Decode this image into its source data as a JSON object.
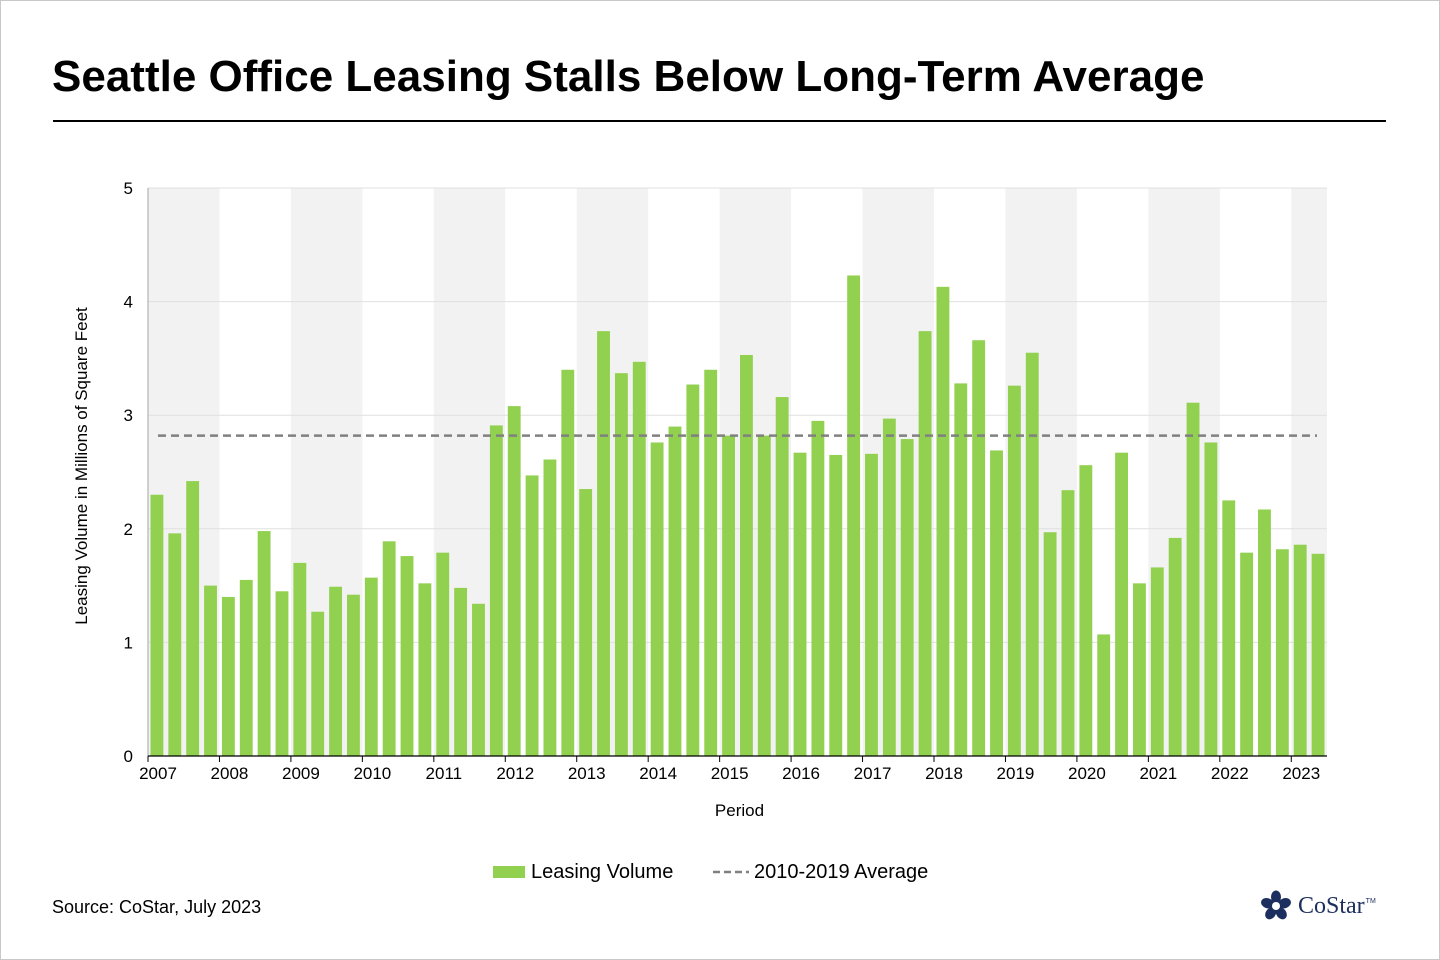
{
  "title": "Seattle Office Leasing Stalls Below Long-Term Average",
  "source": "Source: CoStar, July 2023",
  "logo": {
    "text": "CoStar",
    "tm": "TM"
  },
  "colors": {
    "bar": "#92d050",
    "average_line": "#808080",
    "band": "#f2f2f2",
    "gridline": "#e0e0e0",
    "logo": "#1d2f5e"
  },
  "chart_data": {
    "type": "bar",
    "title": "Seattle Office Leasing Stalls Below Long-Term Average",
    "xlabel": "Period",
    "ylabel": "Leasing Volume in Millions of Square Feet",
    "ylim": [
      0,
      5
    ],
    "yticks": [
      0,
      1,
      2,
      3,
      4,
      5
    ],
    "grid": true,
    "year_labels": [
      "2007",
      "2008",
      "2009",
      "2010",
      "2011",
      "2012",
      "2013",
      "2014",
      "2015",
      "2016",
      "2017",
      "2018",
      "2019",
      "2020",
      "2021",
      "2022",
      "2023"
    ],
    "categories": [
      "2007 Q1",
      "2007 Q2",
      "2007 Q3",
      "2007 Q4",
      "2008 Q1",
      "2008 Q2",
      "2008 Q3",
      "2008 Q4",
      "2009 Q1",
      "2009 Q2",
      "2009 Q3",
      "2009 Q4",
      "2010 Q1",
      "2010 Q2",
      "2010 Q3",
      "2010 Q4",
      "2011 Q1",
      "2011 Q2",
      "2011 Q3",
      "2011 Q4",
      "2012 Q1",
      "2012 Q2",
      "2012 Q3",
      "2012 Q4",
      "2013 Q1",
      "2013 Q2",
      "2013 Q3",
      "2013 Q4",
      "2014 Q1",
      "2014 Q2",
      "2014 Q3",
      "2014 Q4",
      "2015 Q1",
      "2015 Q2",
      "2015 Q3",
      "2015 Q4",
      "2016 Q1",
      "2016 Q2",
      "2016 Q3",
      "2016 Q4",
      "2017 Q1",
      "2017 Q2",
      "2017 Q3",
      "2017 Q4",
      "2018 Q1",
      "2018 Q2",
      "2018 Q3",
      "2018 Q4",
      "2019 Q1",
      "2019 Q2",
      "2019 Q3",
      "2019 Q4",
      "2020 Q1",
      "2020 Q2",
      "2020 Q3",
      "2020 Q4",
      "2021 Q1",
      "2021 Q2",
      "2021 Q3",
      "2021 Q4",
      "2022 Q1",
      "2022 Q2",
      "2022 Q3",
      "2022 Q4",
      "2023 Q1",
      "2023 Q2"
    ],
    "series": [
      {
        "name": "Leasing Volume",
        "type": "bar",
        "values": [
          2.3,
          1.96,
          2.42,
          1.5,
          1.4,
          1.55,
          1.98,
          1.45,
          1.7,
          1.27,
          1.49,
          1.42,
          1.57,
          1.89,
          1.76,
          1.52,
          1.79,
          1.48,
          1.34,
          2.91,
          3.08,
          2.47,
          2.61,
          3.4,
          2.35,
          3.74,
          3.37,
          3.47,
          2.76,
          2.9,
          3.27,
          3.4,
          2.82,
          3.53,
          2.82,
          3.16,
          2.67,
          2.95,
          2.65,
          4.23,
          2.66,
          2.97,
          2.79,
          3.74,
          4.13,
          3.28,
          3.66,
          2.69,
          3.26,
          3.55,
          1.97,
          2.34,
          2.56,
          1.07,
          2.67,
          1.52,
          1.66,
          1.92,
          3.11,
          2.76,
          2.25,
          1.79,
          2.17,
          1.82,
          1.86,
          1.78
        ]
      },
      {
        "name": "2010-2019 Average",
        "type": "line",
        "style": "dashed",
        "value": 2.82
      }
    ],
    "legend": [
      "Leasing Volume",
      "2010-2019 Average"
    ],
    "legend_position": "bottom-center"
  }
}
